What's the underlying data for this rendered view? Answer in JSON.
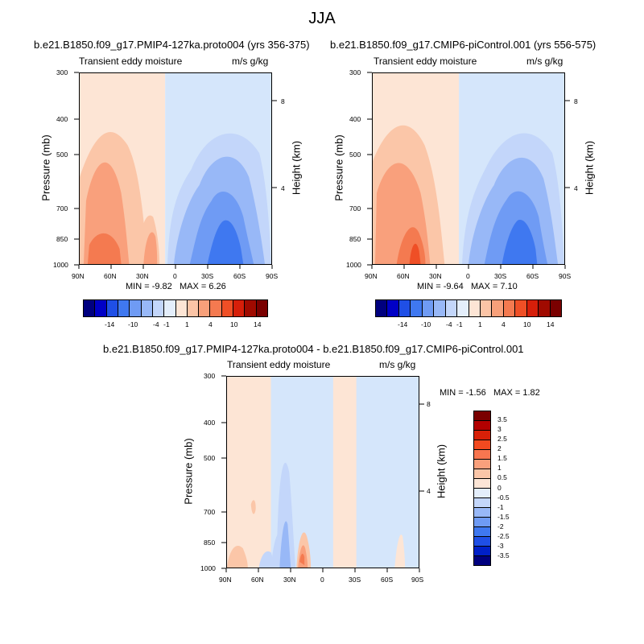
{
  "page_title": "JJA",
  "chart_data": [
    {
      "type": "heatmap",
      "title": "b.e21.B1850.f09_g17.PMIP4-127ka.proto004 (yrs 356-375)",
      "left_label": "Transient eddy moisture",
      "right_label": "m/s g/kg",
      "xlabel": "",
      "ylabel": "Pressure (mb)",
      "y2label": "Height (km)",
      "x_ticks": [
        "90N",
        "60N",
        "30N",
        "0",
        "30S",
        "60S",
        "90S"
      ],
      "y_ticks": [
        "300",
        "400",
        "500",
        "700",
        "850",
        "1000"
      ],
      "y2_ticks": [
        "8",
        "4"
      ],
      "stats": {
        "min_label": "MIN =",
        "min": "-9.82",
        "max_label": "MAX =",
        "max": "6.26"
      },
      "colorbar_labels": [
        "-14",
        "-10",
        "-4",
        "-1",
        "1",
        "4",
        "10",
        "14"
      ]
    },
    {
      "type": "heatmap",
      "title": "b.e21.B1850.f09_g17.CMIP6-piControl.001 (yrs 556-575)",
      "left_label": "Transient eddy moisture",
      "right_label": "m/s g/kg",
      "xlabel": "",
      "ylabel": "Pressure (mb)",
      "y2label": "Height (km)",
      "x_ticks": [
        "90N",
        "60N",
        "30N",
        "0",
        "30S",
        "60S",
        "90S"
      ],
      "y_ticks": [
        "300",
        "400",
        "500",
        "700",
        "850",
        "1000"
      ],
      "y2_ticks": [
        "8",
        "4"
      ],
      "stats": {
        "min_label": "MIN =",
        "min": "-9.64",
        "max_label": "MAX =",
        "max": "7.10"
      },
      "colorbar_labels": [
        "-14",
        "-10",
        "-4",
        "-1",
        "1",
        "4",
        "10",
        "14"
      ]
    },
    {
      "type": "heatmap",
      "title": "b.e21.B1850.f09_g17.PMIP4-127ka.proto004 - b.e21.B1850.f09_g17.CMIP6-piControl.001",
      "left_label": "Transient eddy moisture",
      "right_label": "m/s g/kg",
      "xlabel": "",
      "ylabel": "Pressure (mb)",
      "y2label": "Height (km)",
      "x_ticks": [
        "90N",
        "60N",
        "30N",
        "0",
        "30S",
        "60S",
        "90S"
      ],
      "y_ticks": [
        "300",
        "400",
        "500",
        "700",
        "850",
        "1000"
      ],
      "y2_ticks": [
        "8",
        "4"
      ],
      "stats": {
        "min_label": "MIN =",
        "min": "-1.56",
        "max_label": "MAX =",
        "max": "1.82"
      },
      "colorbar_labels": [
        "3.5",
        "3",
        "2.5",
        "2",
        "1.5",
        "1",
        "0.5",
        "0",
        "-0.5",
        "-1",
        "-1.5",
        "-2",
        "-2.5",
        "-3",
        "-3.5"
      ]
    }
  ],
  "colors": {
    "levels_top": [
      "#00007f",
      "#0000c6",
      "#1f4fe6",
      "#3f78f0",
      "#6f9bf4",
      "#98b8f7",
      "#c3d6fa",
      "#e4eefb",
      "#fde5d5",
      "#fbc4a6",
      "#f8a07a",
      "#f47a50",
      "#ef4f26",
      "#d61f0a",
      "#a00a00",
      "#7a0000"
    ],
    "levels_diff": [
      "#7a0000",
      "#b20000",
      "#d82008",
      "#f24a20",
      "#f87650",
      "#f9a07c",
      "#fbc6a8",
      "#fde6d6",
      "#e4eefb",
      "#c3d6fa",
      "#98b8f7",
      "#6f9bf4",
      "#3f78f0",
      "#1f4fe6",
      "#0020c8",
      "#00007f"
    ],
    "pale_red": "#fde5d5",
    "pale_blue": "#d5e6fb"
  }
}
